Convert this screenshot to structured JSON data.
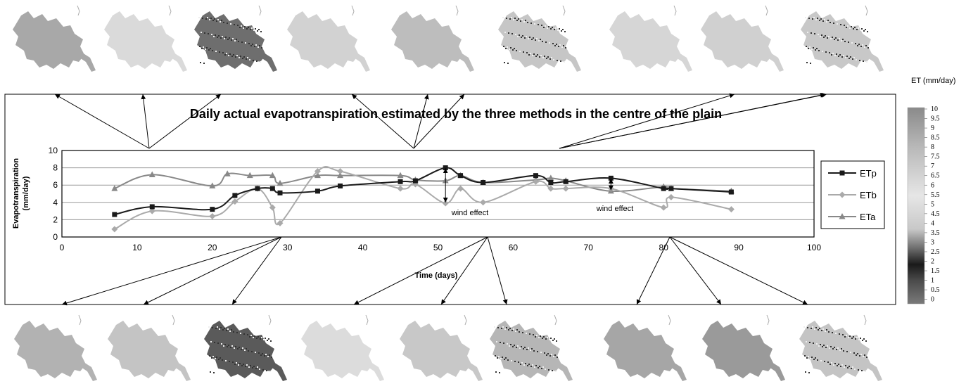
{
  "colorbar": {
    "title": "ET (mm/day)",
    "labels": [
      "10",
      "9.5",
      "9",
      "8.5",
      "8",
      "7.5",
      "7",
      "6.5",
      "6",
      "5.5",
      "5",
      "4.5",
      "4",
      "3.5",
      "3",
      "2.5",
      "2",
      "1.5",
      "1",
      "0.5",
      "0"
    ]
  },
  "annotations": {
    "wind_effect_1": "wind effect",
    "wind_effect_2": "wind effect"
  },
  "chart_data": {
    "type": "line",
    "title": "Daily actual evapotranspiration estimated by the three methods in the centre of the plain",
    "xlabel": "Time (days)",
    "ylabel": "Evapotranspiration (mm/day)",
    "xlim": [
      0,
      100
    ],
    "ylim": [
      0,
      10
    ],
    "xticks": [
      0,
      10,
      20,
      30,
      40,
      50,
      60,
      70,
      80,
      90,
      100
    ],
    "yticks": [
      0,
      2,
      4,
      6,
      8,
      10
    ],
    "grid": true,
    "legend": "right",
    "series": [
      {
        "name": "ETp",
        "color": "#1a1a1a",
        "marker": "square",
        "x": [
          7,
          12,
          20,
          23,
          26,
          28,
          29,
          34,
          37,
          45,
          47,
          51,
          53,
          56,
          63,
          65,
          67,
          73,
          80,
          81,
          89
        ],
        "y": [
          2.6,
          3.5,
          3.2,
          4.8,
          5.6,
          5.6,
          5.1,
          5.3,
          5.9,
          6.4,
          6.5,
          8.0,
          7.1,
          6.3,
          7.1,
          6.3,
          6.4,
          6.8,
          5.6,
          5.6,
          5.2
        ]
      },
      {
        "name": "ETb",
        "color": "#aaaaaa",
        "marker": "diamond",
        "x": [
          7,
          12,
          20,
          23,
          26,
          28,
          29,
          34,
          37,
          45,
          47,
          51,
          53,
          56,
          63,
          65,
          67,
          73,
          80,
          81,
          89
        ],
        "y": [
          0.9,
          3.0,
          2.4,
          4.1,
          5.6,
          3.4,
          1.6,
          7.6,
          7.6,
          5.6,
          6.1,
          3.9,
          5.6,
          4.0,
          6.4,
          5.6,
          5.6,
          5.6,
          3.4,
          4.6,
          3.2
        ]
      },
      {
        "name": "ETa",
        "color": "#888888",
        "marker": "triangle",
        "x": [
          7,
          12,
          20,
          22,
          25,
          28,
          29,
          34,
          37,
          45,
          47,
          51,
          53,
          56,
          63,
          65,
          67,
          73,
          80,
          81,
          89
        ],
        "y": [
          5.6,
          7.2,
          5.9,
          7.3,
          7.1,
          7.1,
          6.2,
          7.1,
          7.1,
          7.1,
          6.6,
          6.5,
          7.1,
          6.3,
          6.6,
          6.8,
          6.5,
          5.3,
          5.8,
          5.6,
          5.3
        ]
      }
    ]
  }
}
